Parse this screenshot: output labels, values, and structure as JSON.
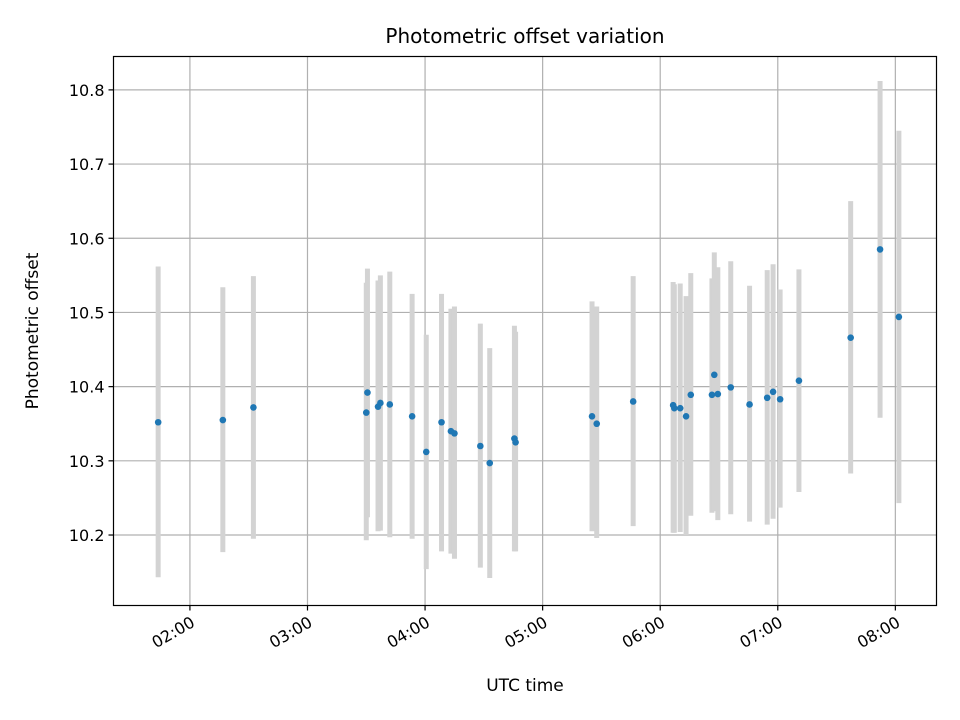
{
  "chart_data": {
    "type": "scatter",
    "title": "Photometric offset variation",
    "xlabel": "UTC time",
    "ylabel": "Photometric offset",
    "x_unit": "hours UTC",
    "xlim": [
      1.35,
      8.35
    ],
    "ylim": [
      10.105,
      10.845
    ],
    "x_ticks": [
      2,
      3,
      4,
      5,
      6,
      7,
      8
    ],
    "x_tick_labels": [
      "02:00",
      "03:00",
      "04:00",
      "05:00",
      "06:00",
      "07:00",
      "08:00"
    ],
    "y_ticks": [
      10.2,
      10.3,
      10.4,
      10.5,
      10.6,
      10.7,
      10.8
    ],
    "y_tick_labels": [
      "10.2",
      "10.3",
      "10.4",
      "10.5",
      "10.6",
      "10.7",
      "10.8"
    ],
    "grid": true,
    "marker_color": "#1f77b4",
    "errorbar_color": "#d3d3d3",
    "points": [
      {
        "x": 1.73,
        "y": 10.352,
        "lo": 10.143,
        "hi": 10.562
      },
      {
        "x": 2.28,
        "y": 10.355,
        "lo": 10.177,
        "hi": 10.534
      },
      {
        "x": 2.54,
        "y": 10.372,
        "lo": 10.195,
        "hi": 10.549
      },
      {
        "x": 3.51,
        "y": 10.392,
        "lo": 10.224,
        "hi": 10.559
      },
      {
        "x": 3.5,
        "y": 10.365,
        "lo": 10.193,
        "hi": 10.54
      },
      {
        "x": 3.6,
        "y": 10.373,
        "lo": 10.205,
        "hi": 10.543
      },
      {
        "x": 3.62,
        "y": 10.378,
        "lo": 10.206,
        "hi": 10.55
      },
      {
        "x": 3.7,
        "y": 10.376,
        "lo": 10.197,
        "hi": 10.555
      },
      {
        "x": 3.89,
        "y": 10.36,
        "lo": 10.195,
        "hi": 10.525
      },
      {
        "x": 4.01,
        "y": 10.312,
        "lo": 10.154,
        "hi": 10.47
      },
      {
        "x": 4.14,
        "y": 10.352,
        "lo": 10.178,
        "hi": 10.525
      },
      {
        "x": 4.22,
        "y": 10.34,
        "lo": 10.175,
        "hi": 10.505
      },
      {
        "x": 4.25,
        "y": 10.337,
        "lo": 10.168,
        "hi": 10.508
      },
      {
        "x": 4.47,
        "y": 10.32,
        "lo": 10.156,
        "hi": 10.485
      },
      {
        "x": 4.55,
        "y": 10.297,
        "lo": 10.142,
        "hi": 10.452
      },
      {
        "x": 4.76,
        "y": 10.33,
        "lo": 10.178,
        "hi": 10.482
      },
      {
        "x": 4.77,
        "y": 10.325,
        "lo": 10.178,
        "hi": 10.474
      },
      {
        "x": 5.42,
        "y": 10.36,
        "lo": 10.205,
        "hi": 10.515
      },
      {
        "x": 5.46,
        "y": 10.35,
        "lo": 10.196,
        "hi": 10.508
      },
      {
        "x": 5.77,
        "y": 10.38,
        "lo": 10.212,
        "hi": 10.549
      },
      {
        "x": 6.11,
        "y": 10.375,
        "lo": 10.203,
        "hi": 10.541
      },
      {
        "x": 6.12,
        "y": 10.371,
        "lo": 10.203,
        "hi": 10.538
      },
      {
        "x": 6.17,
        "y": 10.371,
        "lo": 10.204,
        "hi": 10.539
      },
      {
        "x": 6.22,
        "y": 10.36,
        "lo": 10.2,
        "hi": 10.522
      },
      {
        "x": 6.26,
        "y": 10.389,
        "lo": 10.226,
        "hi": 10.553
      },
      {
        "x": 6.44,
        "y": 10.389,
        "lo": 10.23,
        "hi": 10.546
      },
      {
        "x": 6.46,
        "y": 10.416,
        "lo": 10.232,
        "hi": 10.581
      },
      {
        "x": 6.49,
        "y": 10.39,
        "lo": 10.22,
        "hi": 10.561
      },
      {
        "x": 6.6,
        "y": 10.399,
        "lo": 10.228,
        "hi": 10.569
      },
      {
        "x": 6.76,
        "y": 10.376,
        "lo": 10.218,
        "hi": 10.536
      },
      {
        "x": 6.91,
        "y": 10.385,
        "lo": 10.214,
        "hi": 10.557
      },
      {
        "x": 6.96,
        "y": 10.393,
        "lo": 10.222,
        "hi": 10.565
      },
      {
        "x": 7.02,
        "y": 10.383,
        "lo": 10.237,
        "hi": 10.531
      },
      {
        "x": 7.18,
        "y": 10.408,
        "lo": 10.258,
        "hi": 10.558
      },
      {
        "x": 7.62,
        "y": 10.466,
        "lo": 10.283,
        "hi": 10.65
      },
      {
        "x": 7.87,
        "y": 10.585,
        "lo": 10.358,
        "hi": 10.812
      },
      {
        "x": 8.03,
        "y": 10.494,
        "lo": 10.243,
        "hi": 10.745
      }
    ]
  }
}
